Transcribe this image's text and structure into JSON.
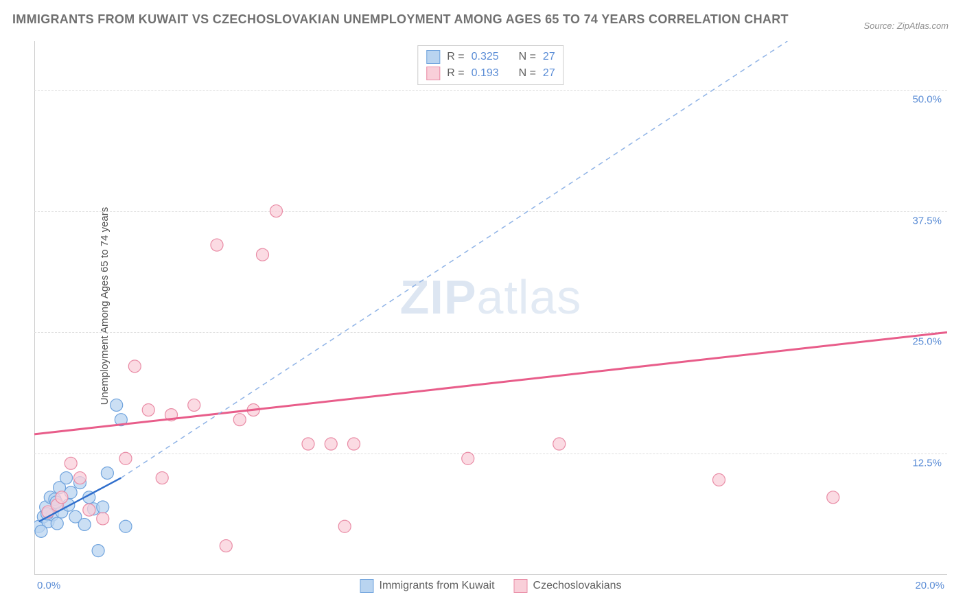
{
  "title": "IMMIGRANTS FROM KUWAIT VS CZECHOSLOVAKIAN UNEMPLOYMENT AMONG AGES 65 TO 74 YEARS CORRELATION CHART",
  "source": "Source: ZipAtlas.com",
  "ylabel": "Unemployment Among Ages 65 to 74 years",
  "watermark_a": "ZIP",
  "watermark_b": "atlas",
  "chart": {
    "type": "scatter",
    "xlim": [
      0,
      20
    ],
    "ylim": [
      0,
      55
    ],
    "xtick_labels": {
      "left": "0.0%",
      "right": "20.0%"
    },
    "ytick_positions": [
      12.5,
      25.0,
      37.5,
      50.0
    ],
    "ytick_labels": [
      "12.5%",
      "25.0%",
      "37.5%",
      "50.0%"
    ],
    "grid_color": "#dddddd",
    "background_color": "#ffffff",
    "axis_color": "#cccccc",
    "tick_label_color": "#5b8dd6",
    "series": [
      {
        "name": "Immigrants from Kuwait",
        "color_fill": "#b9d4f0",
        "color_stroke": "#6fa3dd",
        "marker_radius": 9,
        "R": "0.325",
        "N": "27",
        "points": [
          [
            0.1,
            5.0
          ],
          [
            0.2,
            6.0
          ],
          [
            0.25,
            7.0
          ],
          [
            0.3,
            5.5
          ],
          [
            0.35,
            8.0
          ],
          [
            0.4,
            6.2
          ],
          [
            0.45,
            7.8
          ],
          [
            0.5,
            5.3
          ],
          [
            0.55,
            9.0
          ],
          [
            0.6,
            6.5
          ],
          [
            0.7,
            10.0
          ],
          [
            0.75,
            7.2
          ],
          [
            0.8,
            8.5
          ],
          [
            0.9,
            6.0
          ],
          [
            1.0,
            9.5
          ],
          [
            1.1,
            5.2
          ],
          [
            1.2,
            8.0
          ],
          [
            1.3,
            6.8
          ],
          [
            1.4,
            2.5
          ],
          [
            1.5,
            7.0
          ],
          [
            1.6,
            10.5
          ],
          [
            1.8,
            17.5
          ],
          [
            1.9,
            16.0
          ],
          [
            2.0,
            5.0
          ],
          [
            0.15,
            4.5
          ],
          [
            0.28,
            6.3
          ],
          [
            0.48,
            7.5
          ]
        ],
        "trend": {
          "style": "solid-then-dashed",
          "solid_color": "#2f6ecc",
          "dashed_color": "#8fb3e6",
          "width": 2,
          "solid_segment": [
            [
              0.1,
              5.5
            ],
            [
              1.9,
              10.0
            ]
          ],
          "dashed_segment": [
            [
              1.9,
              10.0
            ],
            [
              16.5,
              55.0
            ]
          ]
        }
      },
      {
        "name": "Czechoslovakians",
        "color_fill": "#f9cfd9",
        "color_stroke": "#e98ba5",
        "marker_radius": 9,
        "R": "0.193",
        "N": "27",
        "points": [
          [
            0.3,
            6.5
          ],
          [
            0.5,
            7.2
          ],
          [
            0.8,
            11.5
          ],
          [
            1.0,
            10.0
          ],
          [
            1.5,
            5.8
          ],
          [
            2.0,
            12.0
          ],
          [
            2.2,
            21.5
          ],
          [
            2.5,
            17.0
          ],
          [
            3.0,
            16.5
          ],
          [
            3.5,
            17.5
          ],
          [
            4.0,
            34.0
          ],
          [
            4.2,
            3.0
          ],
          [
            4.5,
            16.0
          ],
          [
            4.8,
            17.0
          ],
          [
            5.0,
            33.0
          ],
          [
            5.3,
            37.5
          ],
          [
            6.0,
            13.5
          ],
          [
            6.5,
            13.5
          ],
          [
            6.8,
            5.0
          ],
          [
            7.0,
            13.5
          ],
          [
            9.5,
            12.0
          ],
          [
            11.5,
            13.5
          ],
          [
            15.0,
            9.8
          ],
          [
            17.5,
            8.0
          ],
          [
            0.6,
            8.0
          ],
          [
            1.2,
            6.7
          ],
          [
            2.8,
            10.0
          ]
        ],
        "trend": {
          "style": "solid",
          "color": "#e85d8a",
          "width": 3,
          "segment": [
            [
              0.0,
              14.5
            ],
            [
              20.0,
              25.0
            ]
          ]
        }
      }
    ],
    "legend_bottom": [
      {
        "swatch_fill": "#b9d4f0",
        "swatch_stroke": "#6fa3dd",
        "label": "Immigrants from Kuwait"
      },
      {
        "swatch_fill": "#f9cfd9",
        "swatch_stroke": "#e98ba5",
        "label": "Czechoslovakians"
      }
    ]
  }
}
